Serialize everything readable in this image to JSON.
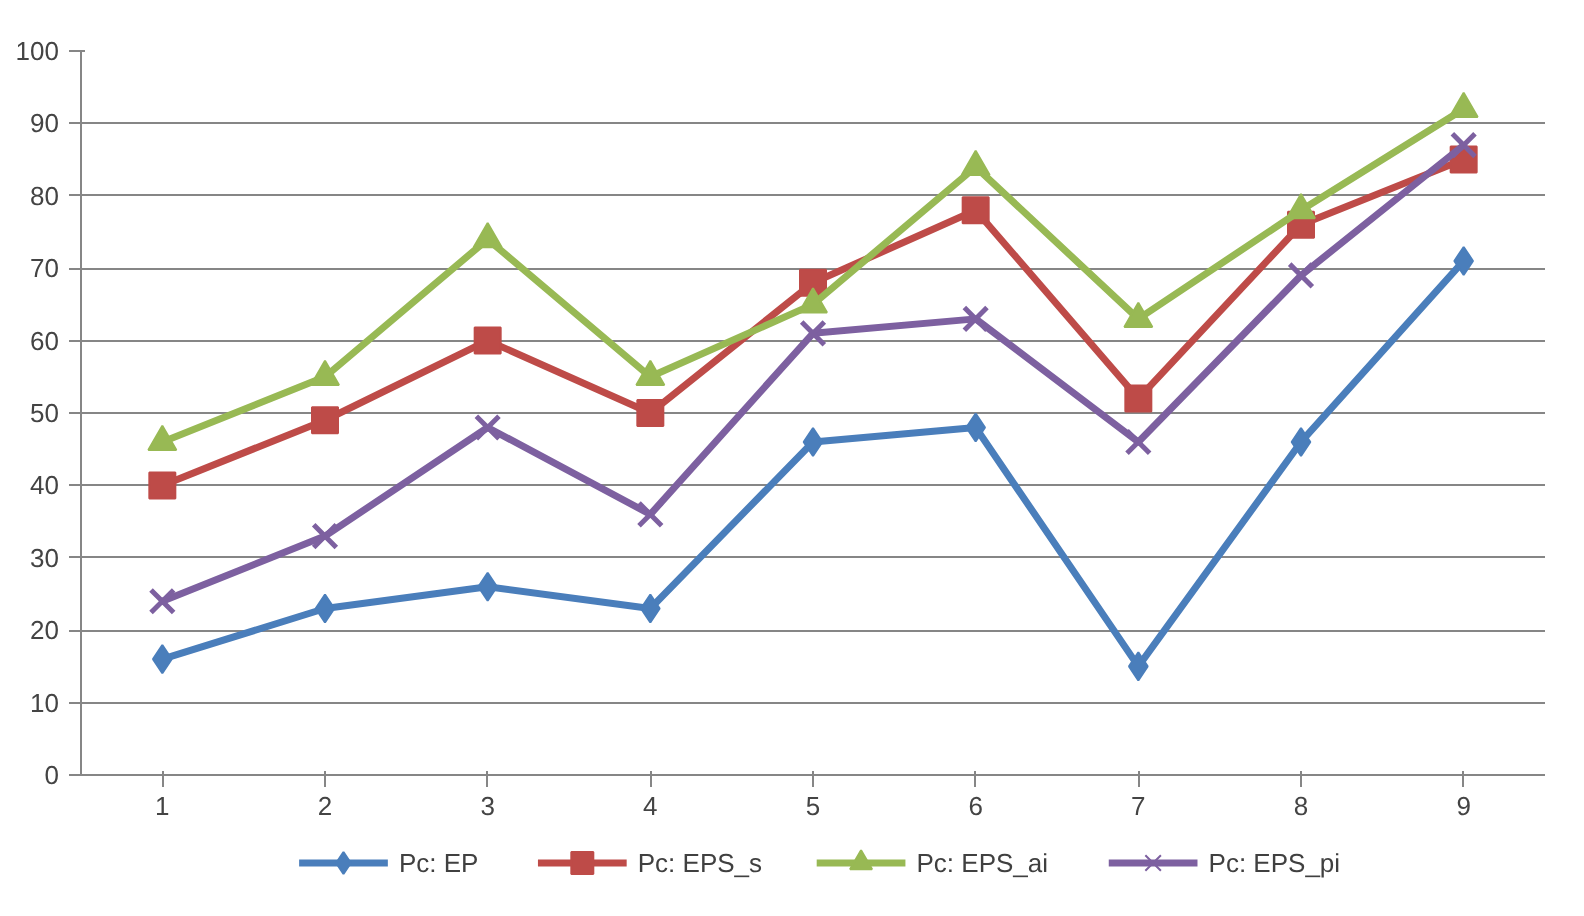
{
  "chart_data": {
    "type": "line",
    "categories": [
      "1",
      "2",
      "3",
      "4",
      "5",
      "6",
      "7",
      "8",
      "9"
    ],
    "series": [
      {
        "name": "Pc: EP",
        "color": "#4a7ebb",
        "marker": "diamond",
        "values": [
          16,
          23,
          26,
          23,
          46,
          48,
          15,
          46,
          71
        ]
      },
      {
        "name": "Pc: EPS_s",
        "color": "#be4b48",
        "marker": "square",
        "values": [
          40,
          49,
          60,
          50,
          68,
          78,
          52,
          76,
          85
        ]
      },
      {
        "name": "Pc: EPS_ai",
        "color": "#98b954",
        "marker": "triangle",
        "values": [
          46,
          55,
          74,
          55,
          65,
          84,
          63,
          78,
          92
        ]
      },
      {
        "name": "Pc: EPS_pi",
        "color": "#7d60a0",
        "marker": "cross",
        "values": [
          24,
          33,
          48,
          36,
          61,
          63,
          46,
          69,
          87
        ]
      }
    ],
    "ylim": [
      0,
      100
    ],
    "yticks": [
      0,
      10,
      20,
      30,
      40,
      50,
      60,
      70,
      80,
      90,
      100
    ],
    "grid": "y",
    "legend": "bottom",
    "line_style": "solid"
  }
}
